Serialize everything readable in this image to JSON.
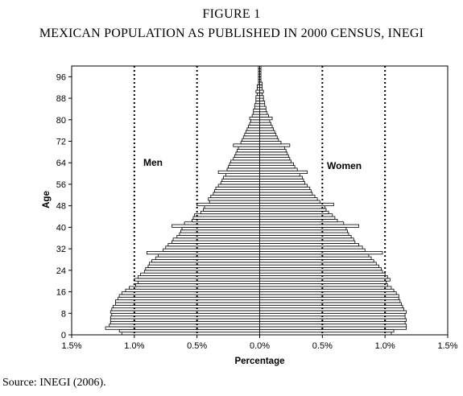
{
  "figure": {
    "title": "FIGURE 1",
    "subtitle": "MEXICAN POPULATION AS PUBLISHED IN 2000 CENSUS, INEGI",
    "source": "Source: INEGI (2006)."
  },
  "chart_data": {
    "type": "bar",
    "orientation": "horizontal",
    "subtype": "population-pyramid",
    "xlabel": "Percentage",
    "ylabel": "Age",
    "xlim": [
      -1.5,
      1.5
    ],
    "ylim": [
      0,
      100
    ],
    "x_ticks": [
      -1.5,
      -1.0,
      -0.5,
      0.0,
      0.5,
      1.0,
      1.5
    ],
    "x_tick_labels": [
      "1.5%",
      "1.0%",
      "0.5%",
      "0.0%",
      "0.5%",
      "1.0%",
      "1.5%"
    ],
    "y_ticks": [
      0,
      8,
      16,
      24,
      32,
      40,
      48,
      56,
      64,
      72,
      80,
      88,
      96
    ],
    "y_tick_labels": [
      "0",
      "8",
      "16",
      "24",
      "32",
      "40",
      "48",
      "56",
      "64",
      "72",
      "80",
      "88",
      "96"
    ],
    "reference_lines": [
      -1.0,
      -0.5,
      0.5,
      1.0
    ],
    "annotations": [
      {
        "text": "Men",
        "side": "left"
      },
      {
        "text": "Women",
        "side": "right"
      }
    ],
    "grid": false,
    "ages": [
      0,
      1,
      2,
      3,
      4,
      5,
      6,
      7,
      8,
      9,
      10,
      11,
      12,
      13,
      14,
      15,
      16,
      17,
      18,
      19,
      20,
      21,
      22,
      23,
      24,
      25,
      26,
      27,
      28,
      29,
      30,
      31,
      32,
      33,
      34,
      35,
      36,
      37,
      38,
      39,
      40,
      41,
      42,
      43,
      44,
      45,
      46,
      47,
      48,
      49,
      50,
      51,
      52,
      53,
      54,
      55,
      56,
      57,
      58,
      59,
      60,
      61,
      62,
      63,
      64,
      65,
      66,
      67,
      68,
      69,
      70,
      71,
      72,
      73,
      74,
      75,
      76,
      77,
      78,
      79,
      80,
      81,
      82,
      83,
      84,
      85,
      86,
      87,
      88,
      89,
      90,
      91,
      92,
      93,
      94,
      95,
      96,
      97,
      98,
      99
    ],
    "series": [
      {
        "name": "Men",
        "values": [
          1.1,
          1.12,
          1.23,
          1.2,
          1.19,
          1.19,
          1.19,
          1.18,
          1.19,
          1.18,
          1.17,
          1.15,
          1.15,
          1.13,
          1.12,
          1.1,
          1.07,
          1.04,
          0.99,
          0.97,
          1.0,
          0.97,
          0.95,
          0.92,
          0.91,
          0.89,
          0.88,
          0.86,
          0.83,
          0.81,
          0.9,
          0.77,
          0.75,
          0.73,
          0.7,
          0.69,
          0.66,
          0.64,
          0.63,
          0.62,
          0.7,
          0.6,
          0.54,
          0.53,
          0.52,
          0.47,
          0.45,
          0.44,
          0.5,
          0.4,
          0.41,
          0.39,
          0.37,
          0.36,
          0.35,
          0.33,
          0.31,
          0.3,
          0.29,
          0.27,
          0.33,
          0.26,
          0.25,
          0.24,
          0.23,
          0.21,
          0.2,
          0.19,
          0.18,
          0.17,
          0.21,
          0.15,
          0.14,
          0.13,
          0.12,
          0.11,
          0.1,
          0.09,
          0.08,
          0.07,
          0.08,
          0.06,
          0.05,
          0.05,
          0.04,
          0.04,
          0.03,
          0.03,
          0.03,
          0.02,
          0.03,
          0.02,
          0.02,
          0.01,
          0.01,
          0.01,
          0.01,
          0.01,
          0.01,
          0.01
        ]
      },
      {
        "name": "Women",
        "values": [
          1.05,
          1.07,
          1.17,
          1.17,
          1.16,
          1.17,
          1.16,
          1.16,
          1.17,
          1.15,
          1.14,
          1.13,
          1.12,
          1.11,
          1.11,
          1.09,
          1.07,
          1.05,
          1.02,
          1.01,
          1.04,
          1.02,
          1.0,
          0.98,
          0.97,
          0.95,
          0.93,
          0.91,
          0.89,
          0.87,
          0.98,
          0.84,
          0.82,
          0.79,
          0.76,
          0.75,
          0.73,
          0.71,
          0.7,
          0.69,
          0.79,
          0.67,
          0.62,
          0.6,
          0.58,
          0.55,
          0.53,
          0.52,
          0.59,
          0.48,
          0.46,
          0.44,
          0.42,
          0.41,
          0.4,
          0.38,
          0.36,
          0.35,
          0.34,
          0.32,
          0.38,
          0.3,
          0.28,
          0.27,
          0.25,
          0.24,
          0.23,
          0.22,
          0.21,
          0.2,
          0.24,
          0.17,
          0.15,
          0.14,
          0.13,
          0.12,
          0.11,
          0.1,
          0.09,
          0.08,
          0.1,
          0.07,
          0.06,
          0.05,
          0.05,
          0.04,
          0.04,
          0.03,
          0.03,
          0.02,
          0.03,
          0.02,
          0.02,
          0.02,
          0.01,
          0.01,
          0.01,
          0.01,
          0.01,
          0.01
        ]
      }
    ]
  }
}
